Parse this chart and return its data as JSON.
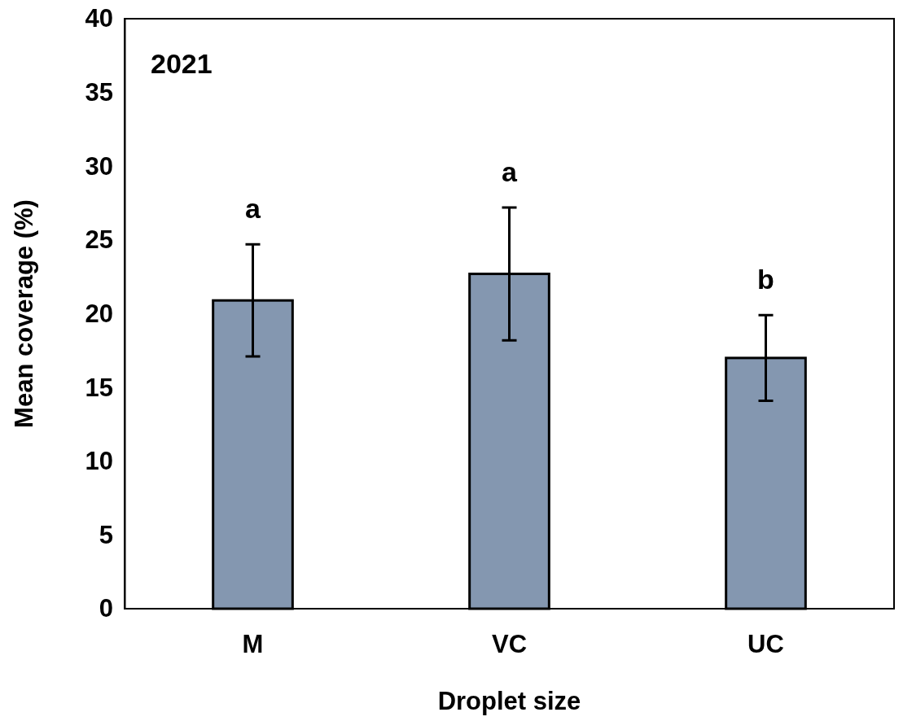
{
  "chart_data": {
    "type": "bar",
    "xlabel": "Droplet size",
    "ylabel": "Mean coverage (%)",
    "categories": [
      "M",
      "VC",
      "UC"
    ],
    "values": [
      20.9,
      22.7,
      17.0
    ],
    "errors": [
      3.8,
      4.5,
      2.9
    ],
    "color": "#8497b0",
    "ylim": [
      0,
      40
    ],
    "yticks": [
      0,
      5,
      10,
      15,
      20,
      25,
      30,
      35,
      40
    ],
    "grid": false,
    "annotations": [
      "2021",
      "a",
      "a",
      "b"
    ]
  }
}
